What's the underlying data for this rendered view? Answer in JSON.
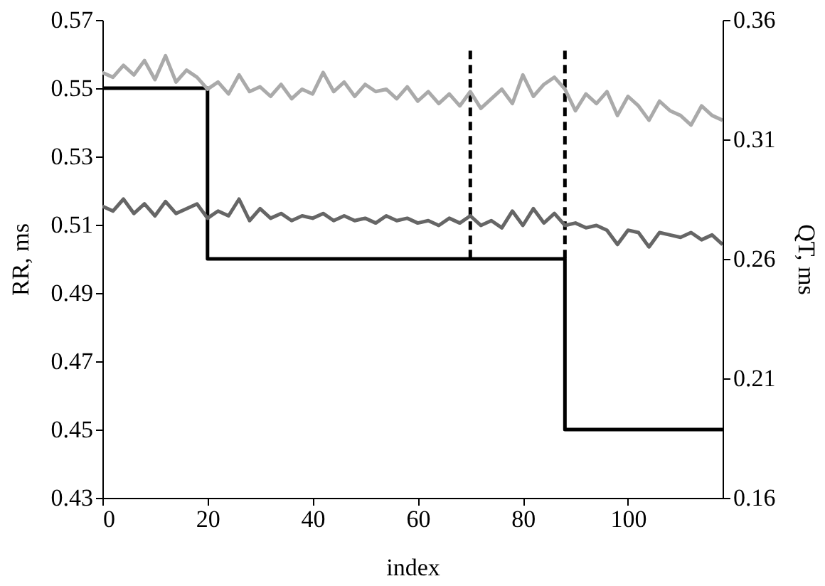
{
  "chart_data": {
    "type": "line",
    "xlabel": "index",
    "ylabel": "RR, ms",
    "y2label": "QT, ms",
    "xlim": [
      0,
      118
    ],
    "xticks": [
      0,
      20,
      40,
      60,
      80,
      100
    ],
    "ylim": [
      0.43,
      0.57
    ],
    "yticks": [
      0.43,
      0.45,
      0.47,
      0.49,
      0.51,
      0.53,
      0.55,
      0.57
    ],
    "y2lim": [
      0.16,
      0.36
    ],
    "y2ticks": [
      0.16,
      0.21,
      0.26,
      0.31,
      0.36
    ],
    "grid": false,
    "legend": false,
    "series": [
      {
        "color": "#aaaaaa",
        "axis": "y2",
        "line_style": "solid",
        "x": [
          0,
          2,
          4,
          6,
          8,
          10,
          12,
          14,
          16,
          18,
          20,
          22,
          24,
          26,
          28,
          30,
          32,
          34,
          36,
          38,
          40,
          42,
          44,
          46,
          48,
          50,
          52,
          54,
          56,
          58,
          60,
          62,
          64,
          66,
          68,
          70,
          72,
          74,
          76,
          78,
          80,
          82,
          84,
          86,
          88,
          90,
          92,
          94,
          96,
          98,
          100,
          102,
          104,
          106,
          108,
          110,
          112,
          114,
          116,
          118
        ],
        "values": [
          0.338,
          0.336,
          0.341,
          0.337,
          0.343,
          0.335,
          0.345,
          0.334,
          0.339,
          0.336,
          0.331,
          0.334,
          0.329,
          0.337,
          0.33,
          0.332,
          0.328,
          0.333,
          0.327,
          0.331,
          0.329,
          0.338,
          0.33,
          0.334,
          0.328,
          0.333,
          0.33,
          0.331,
          0.327,
          0.332,
          0.326,
          0.33,
          0.325,
          0.329,
          0.324,
          0.33,
          0.323,
          0.327,
          0.331,
          0.325,
          0.337,
          0.328,
          0.333,
          0.336,
          0.331,
          0.322,
          0.329,
          0.325,
          0.33,
          0.32,
          0.328,
          0.324,
          0.318,
          0.326,
          0.322,
          0.32,
          0.316,
          0.324,
          0.32,
          0.318
        ]
      },
      {
        "color": "#666666",
        "axis": "y2",
        "line_style": "solid",
        "x": [
          0,
          2,
          4,
          6,
          8,
          10,
          12,
          14,
          16,
          18,
          20,
          22,
          24,
          26,
          28,
          30,
          32,
          34,
          36,
          38,
          40,
          42,
          44,
          46,
          48,
          50,
          52,
          54,
          56,
          58,
          60,
          62,
          64,
          66,
          68,
          70,
          72,
          74,
          76,
          78,
          80,
          82,
          84,
          86,
          88,
          90,
          92,
          94,
          96,
          98,
          100,
          102,
          104,
          106,
          108,
          110,
          112,
          114,
          116,
          118
        ],
        "values": [
          0.282,
          0.28,
          0.285,
          0.279,
          0.283,
          0.278,
          0.284,
          0.279,
          0.281,
          0.283,
          0.277,
          0.28,
          0.278,
          0.285,
          0.276,
          0.281,
          0.277,
          0.279,
          0.276,
          0.278,
          0.277,
          0.279,
          0.276,
          0.278,
          0.276,
          0.277,
          0.275,
          0.278,
          0.276,
          0.277,
          0.275,
          0.276,
          0.274,
          0.277,
          0.275,
          0.278,
          0.274,
          0.276,
          0.273,
          0.28,
          0.274,
          0.281,
          0.275,
          0.279,
          0.274,
          0.275,
          0.273,
          0.274,
          0.272,
          0.266,
          0.272,
          0.271,
          0.265,
          0.271,
          0.27,
          0.269,
          0.271,
          0.268,
          0.27,
          0.266
        ]
      },
      {
        "color": "#000000",
        "line_style": "solid",
        "x": [
          0,
          20,
          20,
          88,
          88,
          118
        ],
        "values": [
          0.55,
          0.55,
          0.5,
          0.5,
          0.45,
          0.45
        ]
      },
      {
        "color": "#000000",
        "line_style": "dashed",
        "x": [
          70,
          70
        ],
        "values": [
          0.561,
          0.5
        ]
      },
      {
        "color": "#000000",
        "line_style": "dashed",
        "x": [
          88,
          88
        ],
        "values": [
          0.561,
          0.5
        ]
      }
    ]
  }
}
